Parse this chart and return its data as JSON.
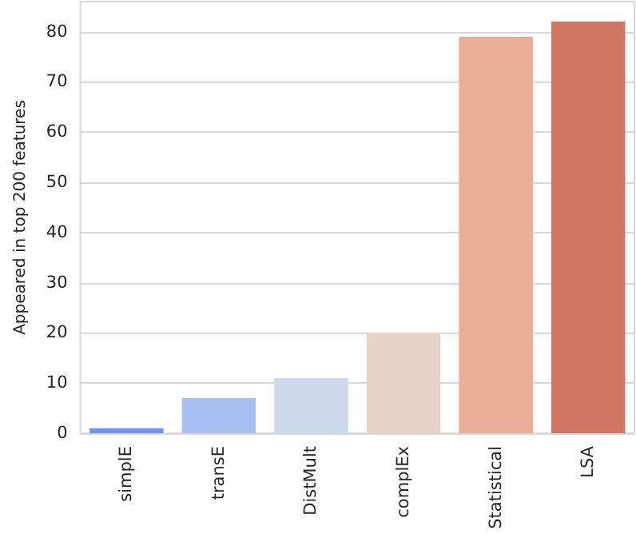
{
  "chart_data": {
    "type": "bar",
    "ylabel": "Appeared in top 200 features",
    "categories": [
      "simplE",
      "transE",
      "DistMult",
      "complEx",
      "Statistical",
      "LSA"
    ],
    "values": [
      1,
      7,
      11,
      20,
      79,
      82
    ],
    "colors": [
      "#7093f3",
      "#a6c0f4",
      "#cdd9ec",
      "#e8d3c9",
      "#eaae96",
      "#d17663"
    ],
    "ylim": [
      0,
      86
    ],
    "yticks": [
      0,
      10,
      20,
      30,
      40,
      50,
      60,
      70,
      80
    ],
    "grid": "y"
  }
}
